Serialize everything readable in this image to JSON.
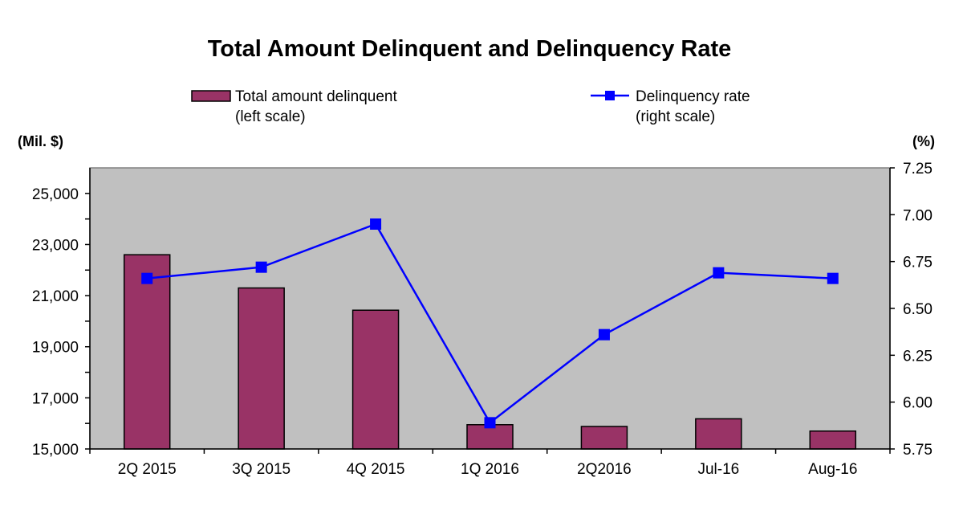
{
  "chart_data": {
    "type": "bar",
    "title": "Total Amount Delinquent and Delinquency Rate",
    "categories": [
      "2Q 2015",
      "3Q 2015",
      "4Q 2015",
      "1Q 2016",
      "2Q2016",
      "Jul-16",
      "Aug-16"
    ],
    "series": [
      {
        "name": "Total amount delinquent",
        "name_note": "(left scale)",
        "type": "bar",
        "axis": "left",
        "color": "#993366",
        "values": [
          22600,
          21300,
          20430,
          15950,
          15880,
          16180,
          15700
        ]
      },
      {
        "name": "Delinquency rate",
        "name_note": "(right scale)",
        "type": "line",
        "axis": "right",
        "color": "#0000FF",
        "values": [
          6.66,
          6.72,
          6.95,
          5.89,
          6.36,
          6.69,
          6.66
        ]
      }
    ],
    "y_left": {
      "unit_label": "(Mil. $)",
      "min": 15000,
      "max": 26000,
      "ticks": [
        15000,
        17000,
        19000,
        21000,
        23000,
        25000
      ],
      "tick_labels": [
        "15,000",
        "17,000",
        "19,000",
        "21,000",
        "23,000",
        "25,000"
      ]
    },
    "y_right": {
      "unit_label": "(%)",
      "min": 5.75,
      "max": 7.25,
      "ticks": [
        5.75,
        6.0,
        6.25,
        6.5,
        6.75,
        7.0,
        7.25
      ],
      "tick_labels": [
        "5.75",
        "6.00",
        "6.25",
        "6.50",
        "6.75",
        "7.00",
        "7.25"
      ]
    },
    "grid": false,
    "plot_background": "#C0C0C0",
    "legend_position": "top"
  }
}
